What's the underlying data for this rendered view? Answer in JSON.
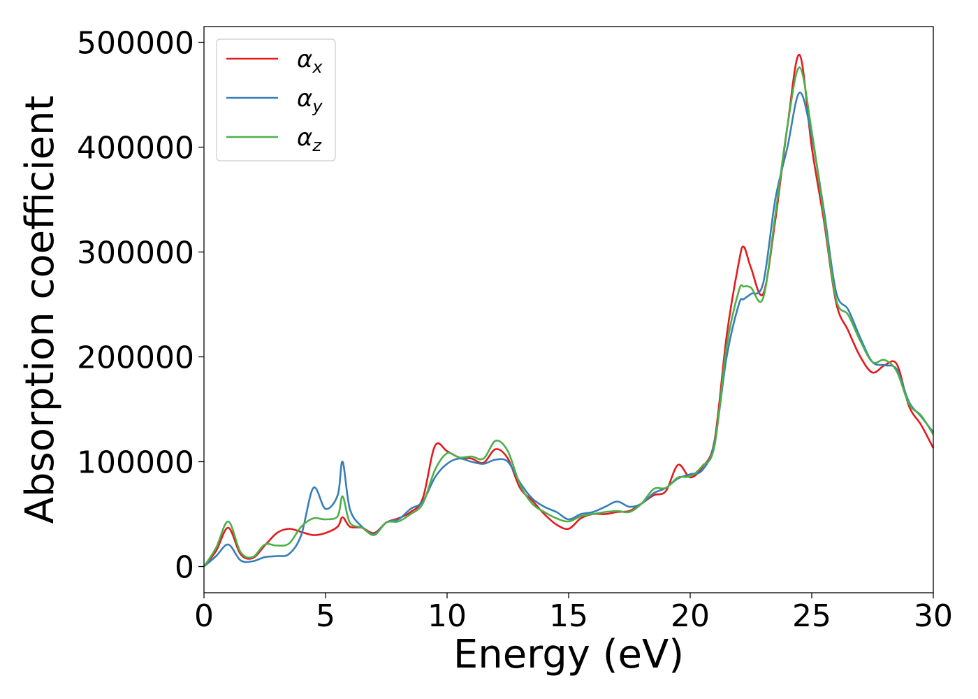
{
  "chart_data": {
    "type": "line",
    "xlabel": "Energy (eV)",
    "ylabel": "Absorption coefficient",
    "xlim": [
      0,
      30
    ],
    "ylim": [
      -25000,
      515000
    ],
    "xticks": [
      0,
      5,
      10,
      15,
      20,
      25,
      30
    ],
    "yticks": [
      0,
      100000,
      200000,
      300000,
      400000,
      500000
    ],
    "xtick_labels": [
      "0",
      "5",
      "10",
      "15",
      "20",
      "25",
      "30"
    ],
    "ytick_labels": [
      "0",
      "100000",
      "200000",
      "300000",
      "400000",
      "500000"
    ],
    "grid": false,
    "legend": {
      "position": "top-left",
      "entries": [
        {
          "symbol": "α",
          "sub": "x",
          "color": "#e41a1c"
        },
        {
          "symbol": "α",
          "sub": "y",
          "color": "#377eb8"
        },
        {
          "symbol": "α",
          "sub": "z",
          "color": "#4daf4a"
        }
      ]
    },
    "x": [
      0,
      0.5,
      1,
      1.5,
      2,
      2.5,
      3,
      3.5,
      4,
      4.5,
      5,
      5.5,
      5.7,
      6,
      6.5,
      7,
      7.5,
      8,
      8.5,
      9,
      9.5,
      10,
      10.5,
      11,
      11.5,
      12,
      12.5,
      13,
      13.5,
      14,
      14.5,
      15,
      15.5,
      16,
      16.5,
      17,
      17.5,
      18,
      18.5,
      19,
      19.5,
      20,
      20.5,
      21,
      21.5,
      22,
      22.2,
      22.5,
      23,
      23.5,
      24,
      24.5,
      25,
      25.5,
      26,
      26.5,
      27,
      27.5,
      28,
      28.5,
      29,
      29.5,
      30
    ],
    "series": [
      {
        "name": "αx",
        "color": "#e41a1c",
        "values": [
          0,
          15000,
          37000,
          12000,
          8000,
          20000,
          32000,
          36000,
          33000,
          30000,
          32000,
          38000,
          47000,
          38000,
          37000,
          32000,
          42000,
          46000,
          52000,
          65000,
          115000,
          110000,
          104000,
          103000,
          99000,
          112000,
          103000,
          75000,
          63000,
          50000,
          40000,
          36000,
          46000,
          50000,
          50000,
          52000,
          53000,
          60000,
          68000,
          72000,
          97000,
          85000,
          95000,
          120000,
          220000,
          290000,
          305000,
          285000,
          260000,
          330000,
          420000,
          488000,
          400000,
          330000,
          252000,
          225000,
          200000,
          185000,
          192000,
          193000,
          153000,
          135000,
          113000
        ]
      },
      {
        "name": "αy",
        "color": "#377eb8",
        "values": [
          0,
          10000,
          21000,
          6000,
          5000,
          9000,
          10000,
          12000,
          30000,
          75000,
          55000,
          68000,
          100000,
          55000,
          38000,
          31000,
          42000,
          45000,
          55000,
          62000,
          85000,
          98000,
          103000,
          100000,
          98000,
          102000,
          100000,
          80000,
          65000,
          57000,
          52000,
          45000,
          50000,
          52000,
          57000,
          62000,
          57000,
          60000,
          70000,
          75000,
          84000,
          88000,
          92000,
          118000,
          200000,
          250000,
          255000,
          260000,
          270000,
          350000,
          400000,
          452000,
          410000,
          340000,
          262000,
          245000,
          218000,
          195000,
          192000,
          188000,
          157000,
          143000,
          128000
        ]
      },
      {
        "name": "αz",
        "color": "#4daf4a",
        "values": [
          0,
          18000,
          43000,
          14000,
          9000,
          21000,
          20000,
          22000,
          38000,
          46000,
          45000,
          48000,
          67000,
          42000,
          37000,
          30000,
          42000,
          43000,
          50000,
          60000,
          92000,
          108000,
          104000,
          105000,
          103000,
          120000,
          110000,
          78000,
          60000,
          52000,
          46000,
          43000,
          48000,
          50000,
          52000,
          53000,
          52000,
          60000,
          74000,
          75000,
          85000,
          86000,
          96000,
          115000,
          210000,
          263000,
          267000,
          266000,
          256000,
          335000,
          420000,
          476000,
          415000,
          335000,
          255000,
          240000,
          215000,
          195000,
          197000,
          186000,
          155000,
          144000,
          126000
        ]
      }
    ]
  }
}
